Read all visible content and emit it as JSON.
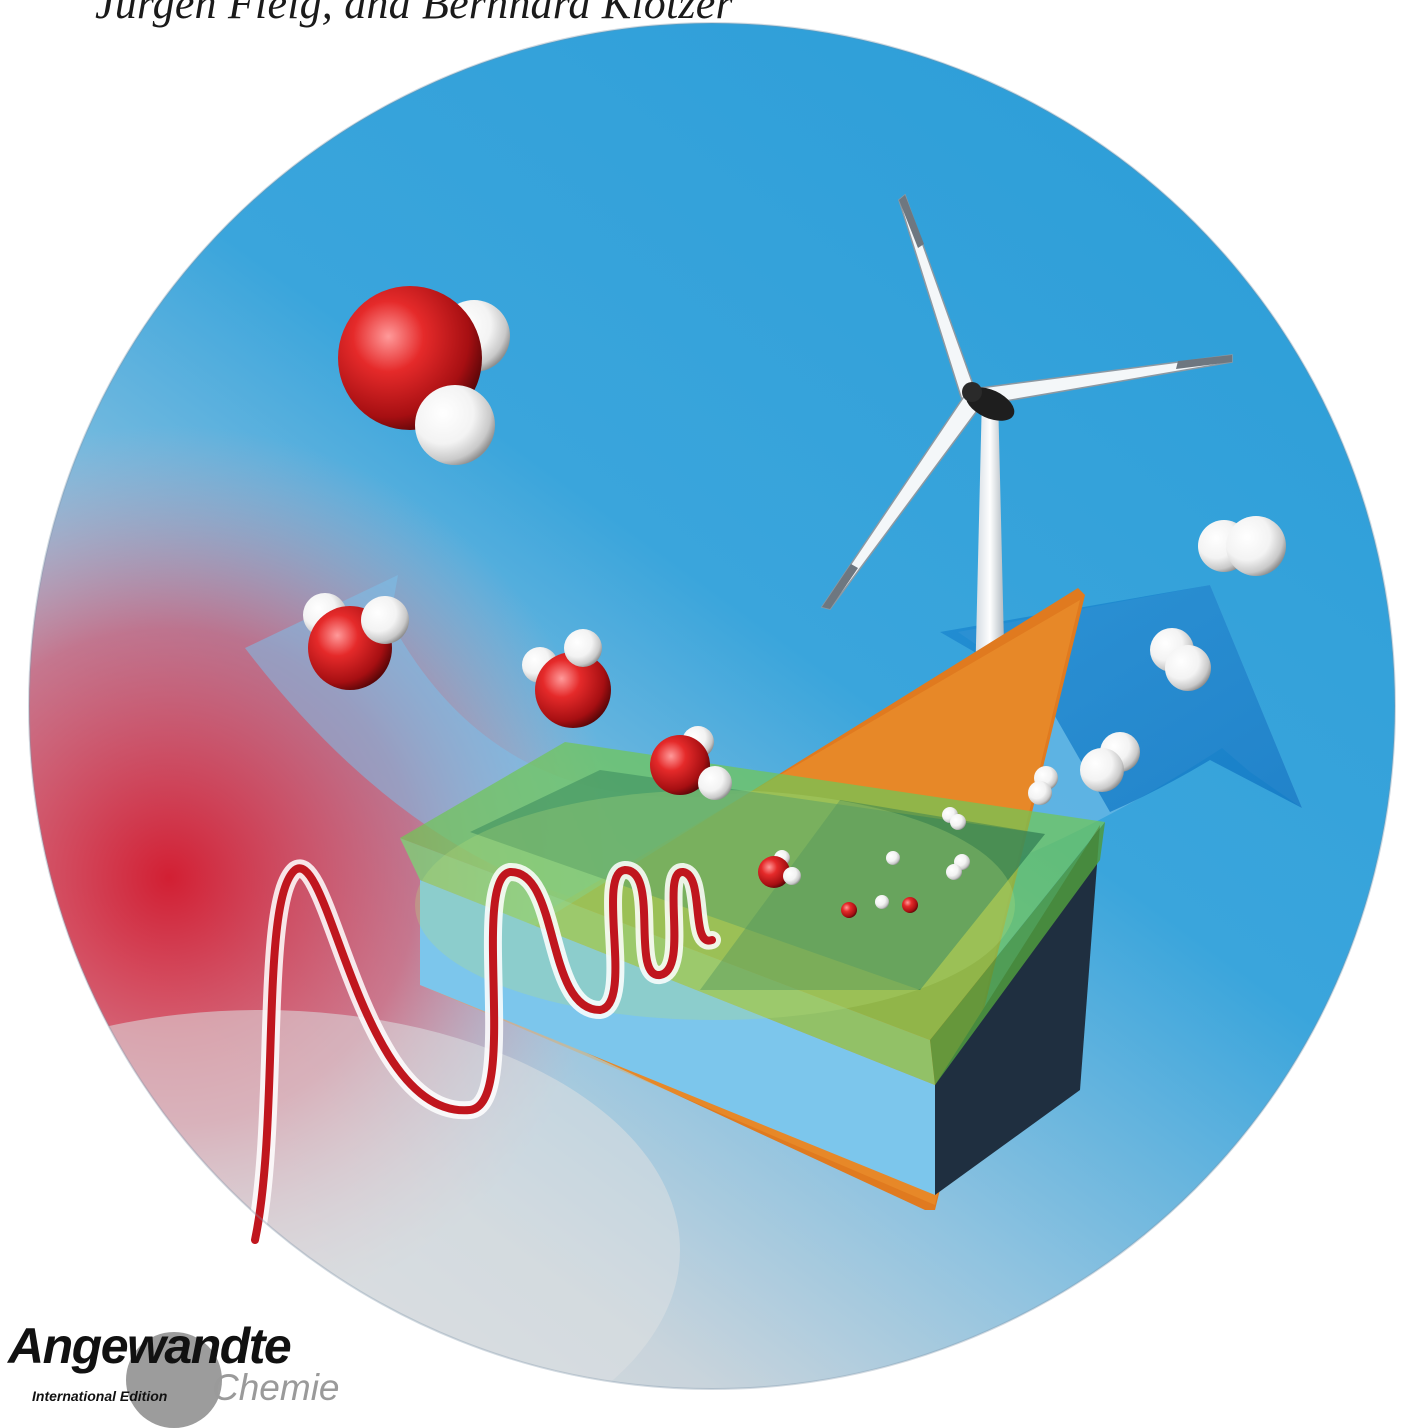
{
  "header": {
    "authors_text": "Jürgen Fleig, and Bernhard Klötzer"
  },
  "logo": {
    "title": "Angewandte",
    "edition": "International Edition",
    "subtitle": "Chemie"
  },
  "colors": {
    "sky_blue": "#2e9fd9",
    "water_oxygen_red": "#c8141c",
    "hydrogen_white": "#ffffff",
    "cell_green": "#6cc24a",
    "substrate_orange": "#e07a1f",
    "wave_red": "#c0161e"
  },
  "icons": {
    "turbine": "wind-turbine-icon",
    "water": "water-molecule-icon",
    "hydrogen": "hydrogen-molecule-icon"
  }
}
